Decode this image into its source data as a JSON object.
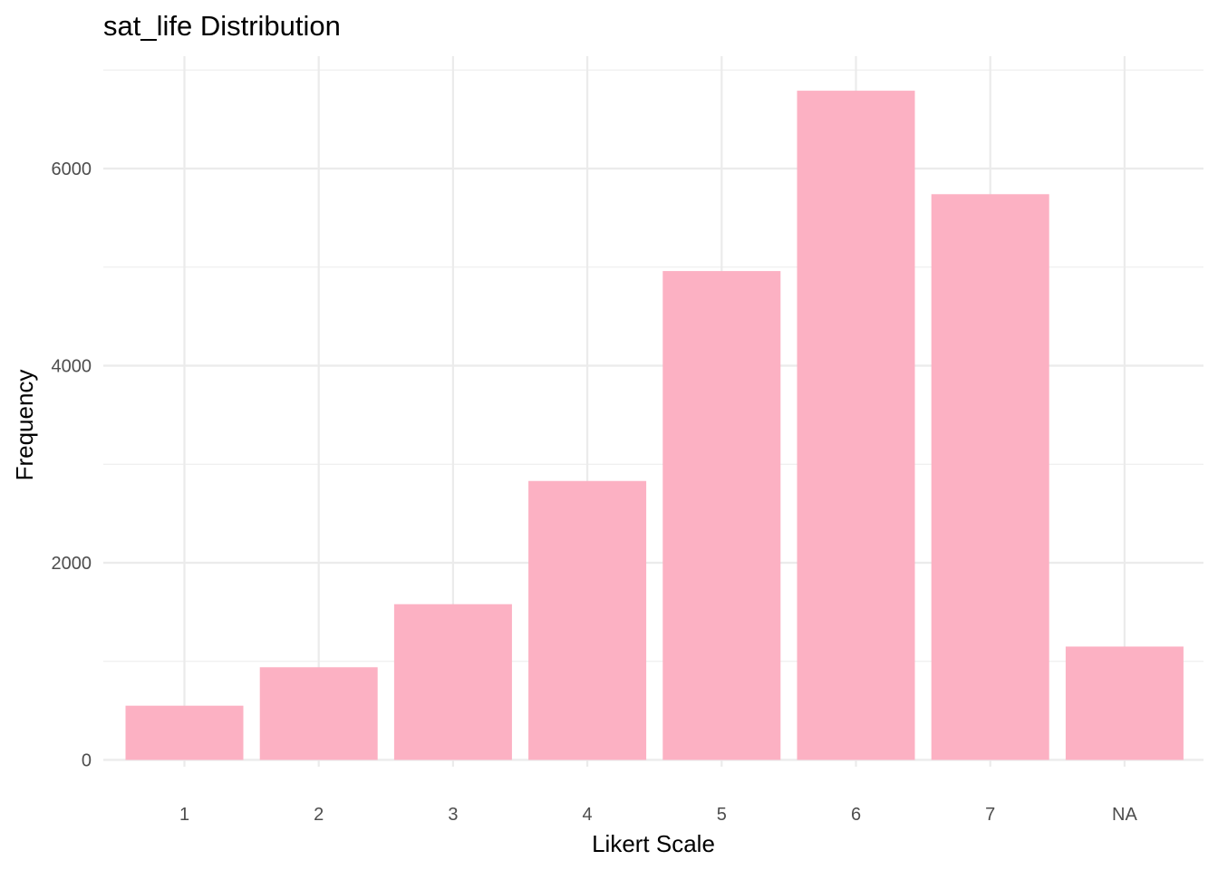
{
  "chart_data": {
    "type": "bar",
    "title": "sat_life Distribution",
    "xlabel": "Likert Scale",
    "ylabel": "Frequency",
    "categories": [
      "1",
      "2",
      "3",
      "4",
      "5",
      "6",
      "7",
      "NA"
    ],
    "values": [
      550,
      940,
      1580,
      2830,
      4960,
      6790,
      5740,
      1150
    ],
    "ylim": [
      0,
      7000
    ],
    "yticks": [
      0,
      2000,
      4000,
      6000
    ],
    "grid": true,
    "legend": "none",
    "colors": {
      "bar": "#fcb1c3",
      "grid": "#ebebeb",
      "tick_text": "#4d4d4d",
      "text": "#000000"
    }
  }
}
